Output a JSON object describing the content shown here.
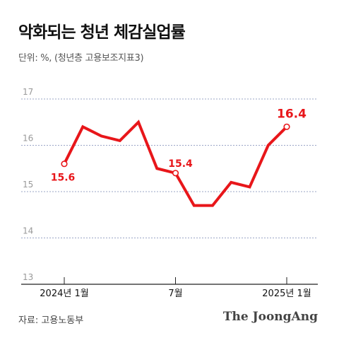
{
  "header": {
    "title": "악화되는 청년 체감실업률",
    "unit": "단위: %, (청년층 고용보조지표3)"
  },
  "footer": {
    "source": "자료: 고용노동부",
    "brand": "The JoongAng"
  },
  "colors": {
    "line": "#e8161a",
    "grid": "#9aa4c6",
    "axis": "#222222",
    "tick_text": "#999999"
  },
  "chart_data": {
    "type": "line",
    "title": "악화되는 청년 체감실업률",
    "xlabel": "",
    "ylabel": "",
    "x": [
      "2024-01",
      "2024-02",
      "2024-03",
      "2024-04",
      "2024-05",
      "2024-06",
      "2024-07",
      "2024-08",
      "2024-09",
      "2024-10",
      "2024-11",
      "2024-12",
      "2025-01"
    ],
    "series": [
      {
        "values": [
          15.6,
          16.4,
          16.2,
          16.1,
          16.5,
          15.5,
          15.4,
          14.7,
          14.7,
          15.2,
          15.1,
          16.0,
          16.4
        ]
      }
    ],
    "ylim": [
      13,
      17
    ],
    "yticks": [
      "13",
      "14",
      "15",
      "16",
      "17"
    ],
    "xticks": [
      {
        "index": 0,
        "label": "2024년 1월"
      },
      {
        "index": 6,
        "label": "7월"
      },
      {
        "index": 12,
        "label": "2025년 1월"
      }
    ],
    "annotations": [
      {
        "index": 0,
        "label": "15.6"
      },
      {
        "index": 6,
        "label": "15.4"
      },
      {
        "index": 12,
        "label": "16.4"
      }
    ],
    "grid": true
  }
}
